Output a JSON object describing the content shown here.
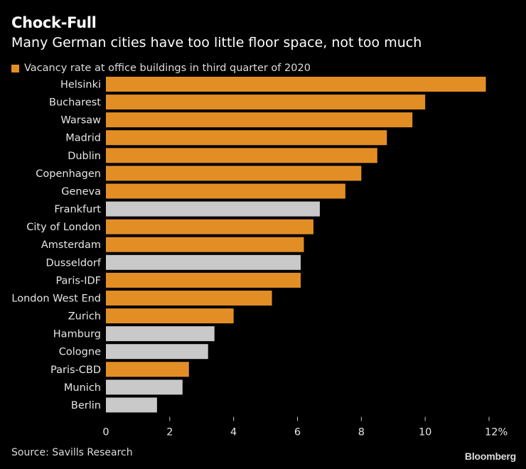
{
  "header": {
    "title": "Chock-Full",
    "subtitle": "Many German cities have too little floor space, not too much"
  },
  "legend": {
    "label": "Vacancy rate at office buildings in third quarter of 2020"
  },
  "footer": {
    "source": "Source: Savills Research",
    "logo": "Bloomberg"
  },
  "colors": {
    "highlight": "#e38e25",
    "german": "#c9c9c9",
    "axis": "#bfbfbf"
  },
  "chart_data": {
    "type": "bar",
    "orientation": "horizontal",
    "title": "Chock-Full",
    "subtitle": "Many German cities have too little floor space, not too much",
    "xlabel": "",
    "ylabel": "",
    "xlim": [
      0,
      12
    ],
    "ticks": [
      0,
      2,
      4,
      6,
      8,
      10,
      12
    ],
    "tick_labels": [
      "0",
      "2",
      "4",
      "6",
      "8",
      "10",
      "12%"
    ],
    "grid": false,
    "legend_position": "top-left",
    "series": [
      {
        "name": "Vacancy rate at office buildings in third quarter of 2020"
      }
    ],
    "categories": [
      "Helsinki",
      "Bucharest",
      "Warsaw",
      "Madrid",
      "Dublin",
      "Copenhagen",
      "Geneva",
      "Frankfurt",
      "City of London",
      "Amsterdam",
      "Dusseldorf",
      "Paris-IDF",
      "London West End",
      "Zurich",
      "Hamburg",
      "Cologne",
      "Paris-CBD",
      "Munich",
      "Berlin"
    ],
    "values": [
      11.9,
      10.0,
      9.6,
      8.8,
      8.5,
      8.0,
      7.5,
      6.7,
      6.5,
      6.2,
      6.1,
      6.1,
      5.2,
      4.0,
      3.4,
      3.2,
      2.6,
      2.4,
      1.6
    ],
    "german": [
      false,
      false,
      false,
      false,
      false,
      false,
      false,
      true,
      false,
      false,
      true,
      false,
      false,
      false,
      true,
      true,
      false,
      true,
      true
    ]
  }
}
